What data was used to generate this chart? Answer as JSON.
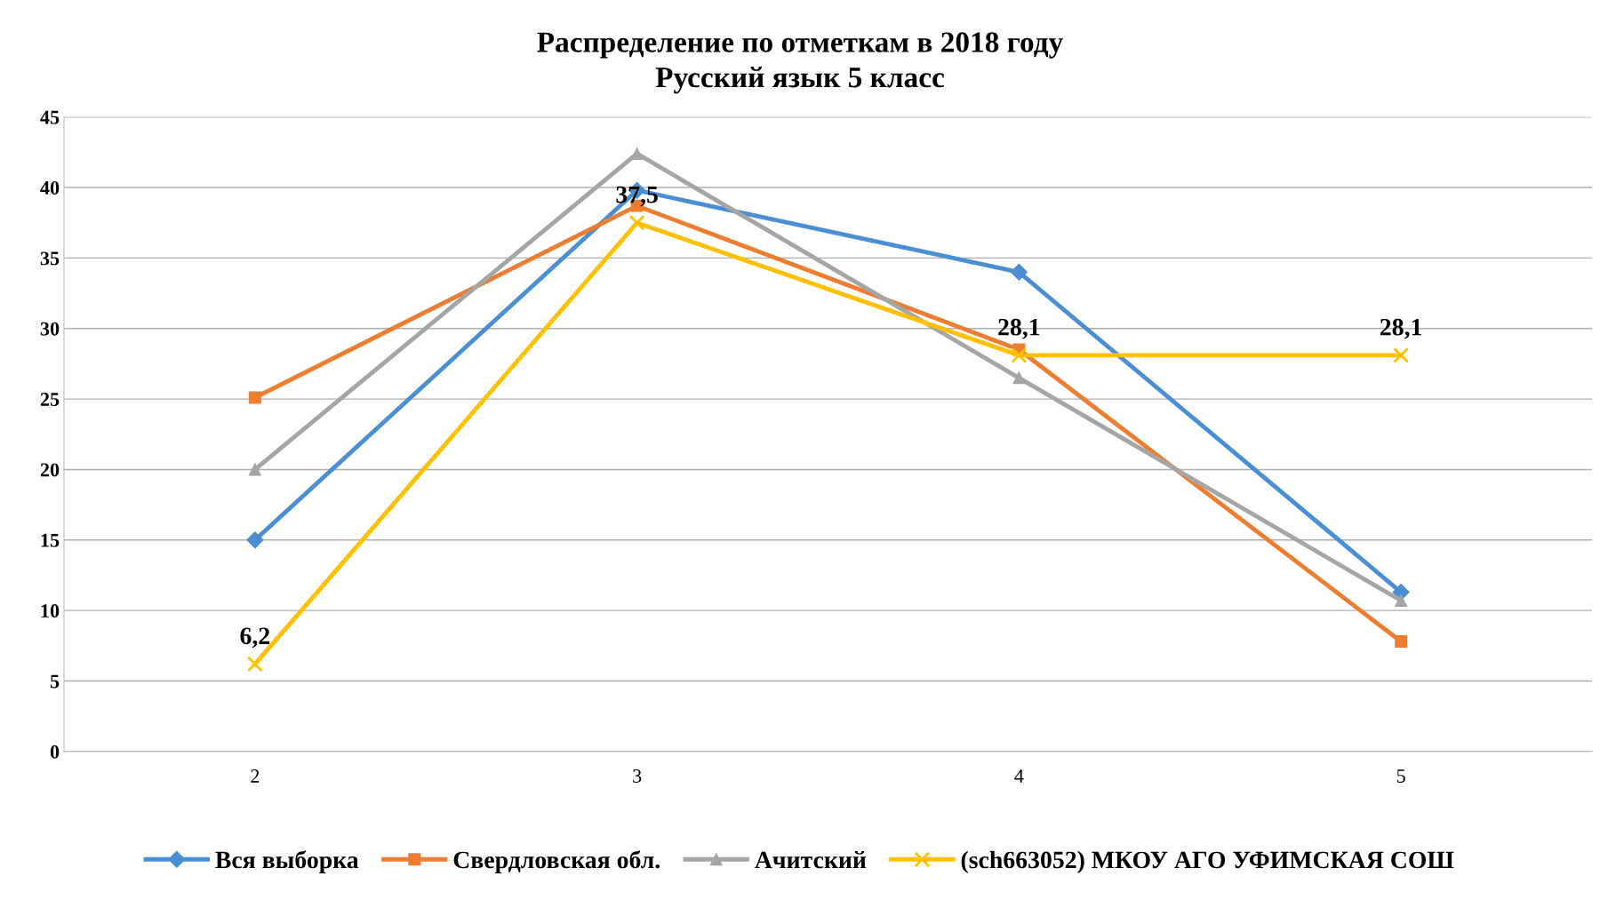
{
  "chart_data": {
    "type": "line",
    "title": "Распределение по отметкам в 2018 году\nРусский язык 5 класс",
    "categories": [
      "2",
      "3",
      "4",
      "5"
    ],
    "series": [
      {
        "name": "Вся выборка",
        "color": "#4a8fd4",
        "marker": "diamond",
        "values": [
          15.0,
          39.8,
          34.0,
          11.3
        ]
      },
      {
        "name": "Свердловская обл.",
        "color": "#ed7d31",
        "marker": "square",
        "values": [
          25.1,
          38.7,
          28.5,
          7.8
        ]
      },
      {
        "name": "Ачитский",
        "color": "#a5a5a5",
        "marker": "triangle",
        "values": [
          20.0,
          42.4,
          26.5,
          10.7
        ]
      },
      {
        "name": "(sch663052) МКОУ АГО УФИМСКАЯ СОШ",
        "color": "#ffc000",
        "marker": "cross",
        "values": [
          6.2,
          37.5,
          28.1,
          28.1
        ],
        "value_labels": [
          "6,2",
          "37,5",
          "28,1",
          "28,1"
        ]
      }
    ],
    "ylim": [
      0,
      45
    ],
    "yticks": [
      0,
      5,
      10,
      15,
      20,
      25,
      30,
      35,
      40,
      45
    ],
    "grid": "y",
    "legend": "bottom",
    "line_style": "solid"
  }
}
